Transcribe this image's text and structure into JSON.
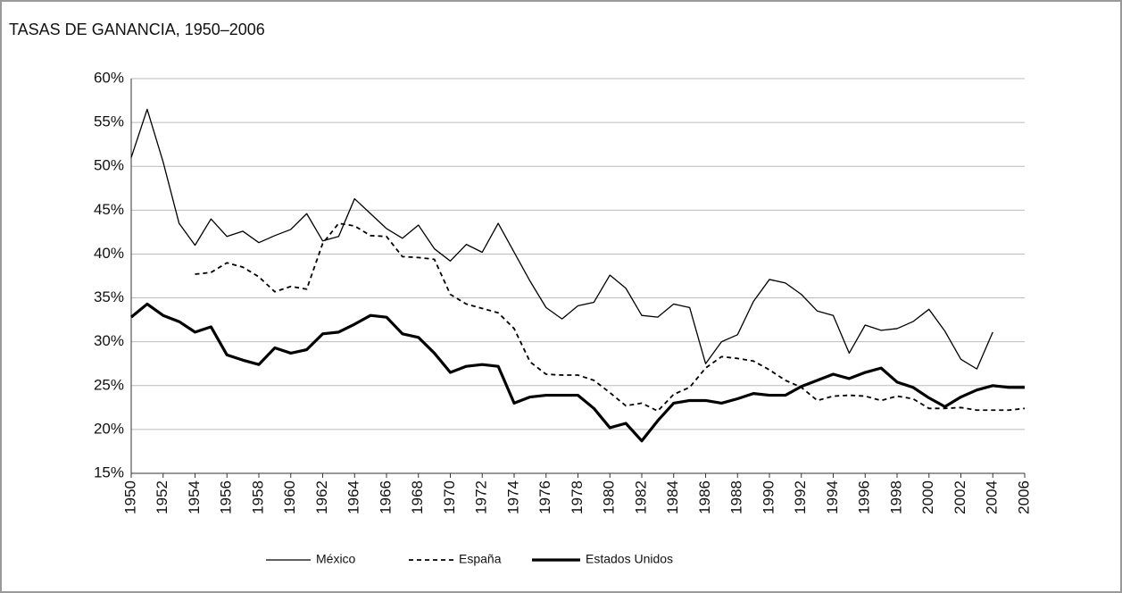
{
  "chart_data": {
    "type": "line",
    "title": "TASAS DE GANANCIA, 1950–2006",
    "x": [
      1950,
      1951,
      1952,
      1953,
      1954,
      1955,
      1956,
      1957,
      1958,
      1959,
      1960,
      1961,
      1962,
      1963,
      1964,
      1965,
      1966,
      1967,
      1968,
      1969,
      1970,
      1971,
      1972,
      1973,
      1974,
      1975,
      1976,
      1977,
      1978,
      1979,
      1980,
      1981,
      1982,
      1983,
      1984,
      1985,
      1986,
      1987,
      1988,
      1989,
      1990,
      1991,
      1992,
      1993,
      1994,
      1995,
      1996,
      1997,
      1998,
      1999,
      2000,
      2001,
      2002,
      2003,
      2004,
      2005,
      2006
    ],
    "series": [
      {
        "name": "México",
        "color": "#000000",
        "line_style": "thin",
        "values": [
          51,
          56.5,
          50.5,
          43.5,
          41,
          44,
          42,
          42.6,
          41.3,
          42.1,
          42.8,
          44.6,
          41.5,
          42,
          46.3,
          44.6,
          42.9,
          41.8,
          43.3,
          40.6,
          39.2,
          41.1,
          40.2,
          43.5,
          40.2,
          36.9,
          33.9,
          32.6,
          34.1,
          34.5,
          37.6,
          36.1,
          33,
          32.8,
          34.3,
          33.9,
          27.5,
          30,
          30.8,
          34.6,
          37.1,
          36.7,
          35.4,
          33.5,
          33,
          28.7,
          31.9,
          31.3,
          31.5,
          32.3,
          33.7,
          31.2,
          28,
          26.9,
          31.1,
          null,
          null
        ]
      },
      {
        "name": "España",
        "color": "#000000",
        "line_style": "dashed",
        "values": [
          null,
          null,
          null,
          null,
          37.7,
          37.9,
          39,
          38.5,
          37.4,
          35.7,
          36.3,
          36,
          41.2,
          43.5,
          43.2,
          42.1,
          42,
          39.7,
          39.6,
          39.4,
          35.4,
          34.3,
          33.8,
          33.3,
          31.5,
          27.7,
          26.3,
          26.2,
          26.2,
          25.6,
          24.2,
          22.7,
          23,
          22.1,
          24,
          24.8,
          27,
          28.3,
          28.1,
          27.8,
          26.8,
          25.6,
          24.8,
          23.3,
          23.8,
          23.9,
          23.8,
          23.3,
          23.8,
          23.5,
          22.4,
          22.4,
          22.5,
          22.2,
          22.2,
          22.2,
          22.4
        ]
      },
      {
        "name": "Estados Unidos",
        "color": "#000000",
        "line_style": "bold",
        "values": [
          32.8,
          34.3,
          33,
          32.3,
          31.1,
          31.7,
          28.5,
          27.9,
          27.4,
          29.3,
          28.7,
          29.1,
          30.9,
          31.1,
          32,
          33,
          32.8,
          30.9,
          30.5,
          28.7,
          26.5,
          27.2,
          27.4,
          27.2,
          23,
          23.7,
          23.9,
          23.9,
          23.9,
          22.4,
          20.2,
          20.7,
          18.7,
          21,
          23,
          23.3,
          23.3,
          23,
          23.5,
          24.1,
          23.9,
          23.9,
          24.9,
          25.6,
          26.3,
          25.8,
          26.5,
          27,
          25.4,
          24.8,
          23.6,
          22.6,
          23.7,
          24.5,
          25,
          24.8,
          24.8
        ]
      }
    ],
    "xlim": [
      1950,
      2006
    ],
    "xticks": [
      1950,
      1952,
      1954,
      1956,
      1958,
      1960,
      1962,
      1964,
      1966,
      1968,
      1970,
      1972,
      1974,
      1976,
      1978,
      1980,
      1982,
      1984,
      1986,
      1988,
      1990,
      1992,
      1994,
      1996,
      1998,
      2000,
      2002,
      2004,
      2006
    ],
    "ylim": [
      15,
      60
    ],
    "yticks": [
      {
        "value": 15,
        "label": "15%"
      },
      {
        "value": 20,
        "label": "20%"
      },
      {
        "value": 25,
        "label": "25%"
      },
      {
        "value": 30,
        "label": "30%"
      },
      {
        "value": 35,
        "label": "35%"
      },
      {
        "value": 40,
        "label": "40%"
      },
      {
        "value": 45,
        "label": "45%"
      },
      {
        "value": 50,
        "label": "50%"
      },
      {
        "value": 55,
        "label": "55%"
      },
      {
        "value": 60,
        "label": "60%"
      }
    ],
    "grid": true,
    "legend": "bottom"
  }
}
